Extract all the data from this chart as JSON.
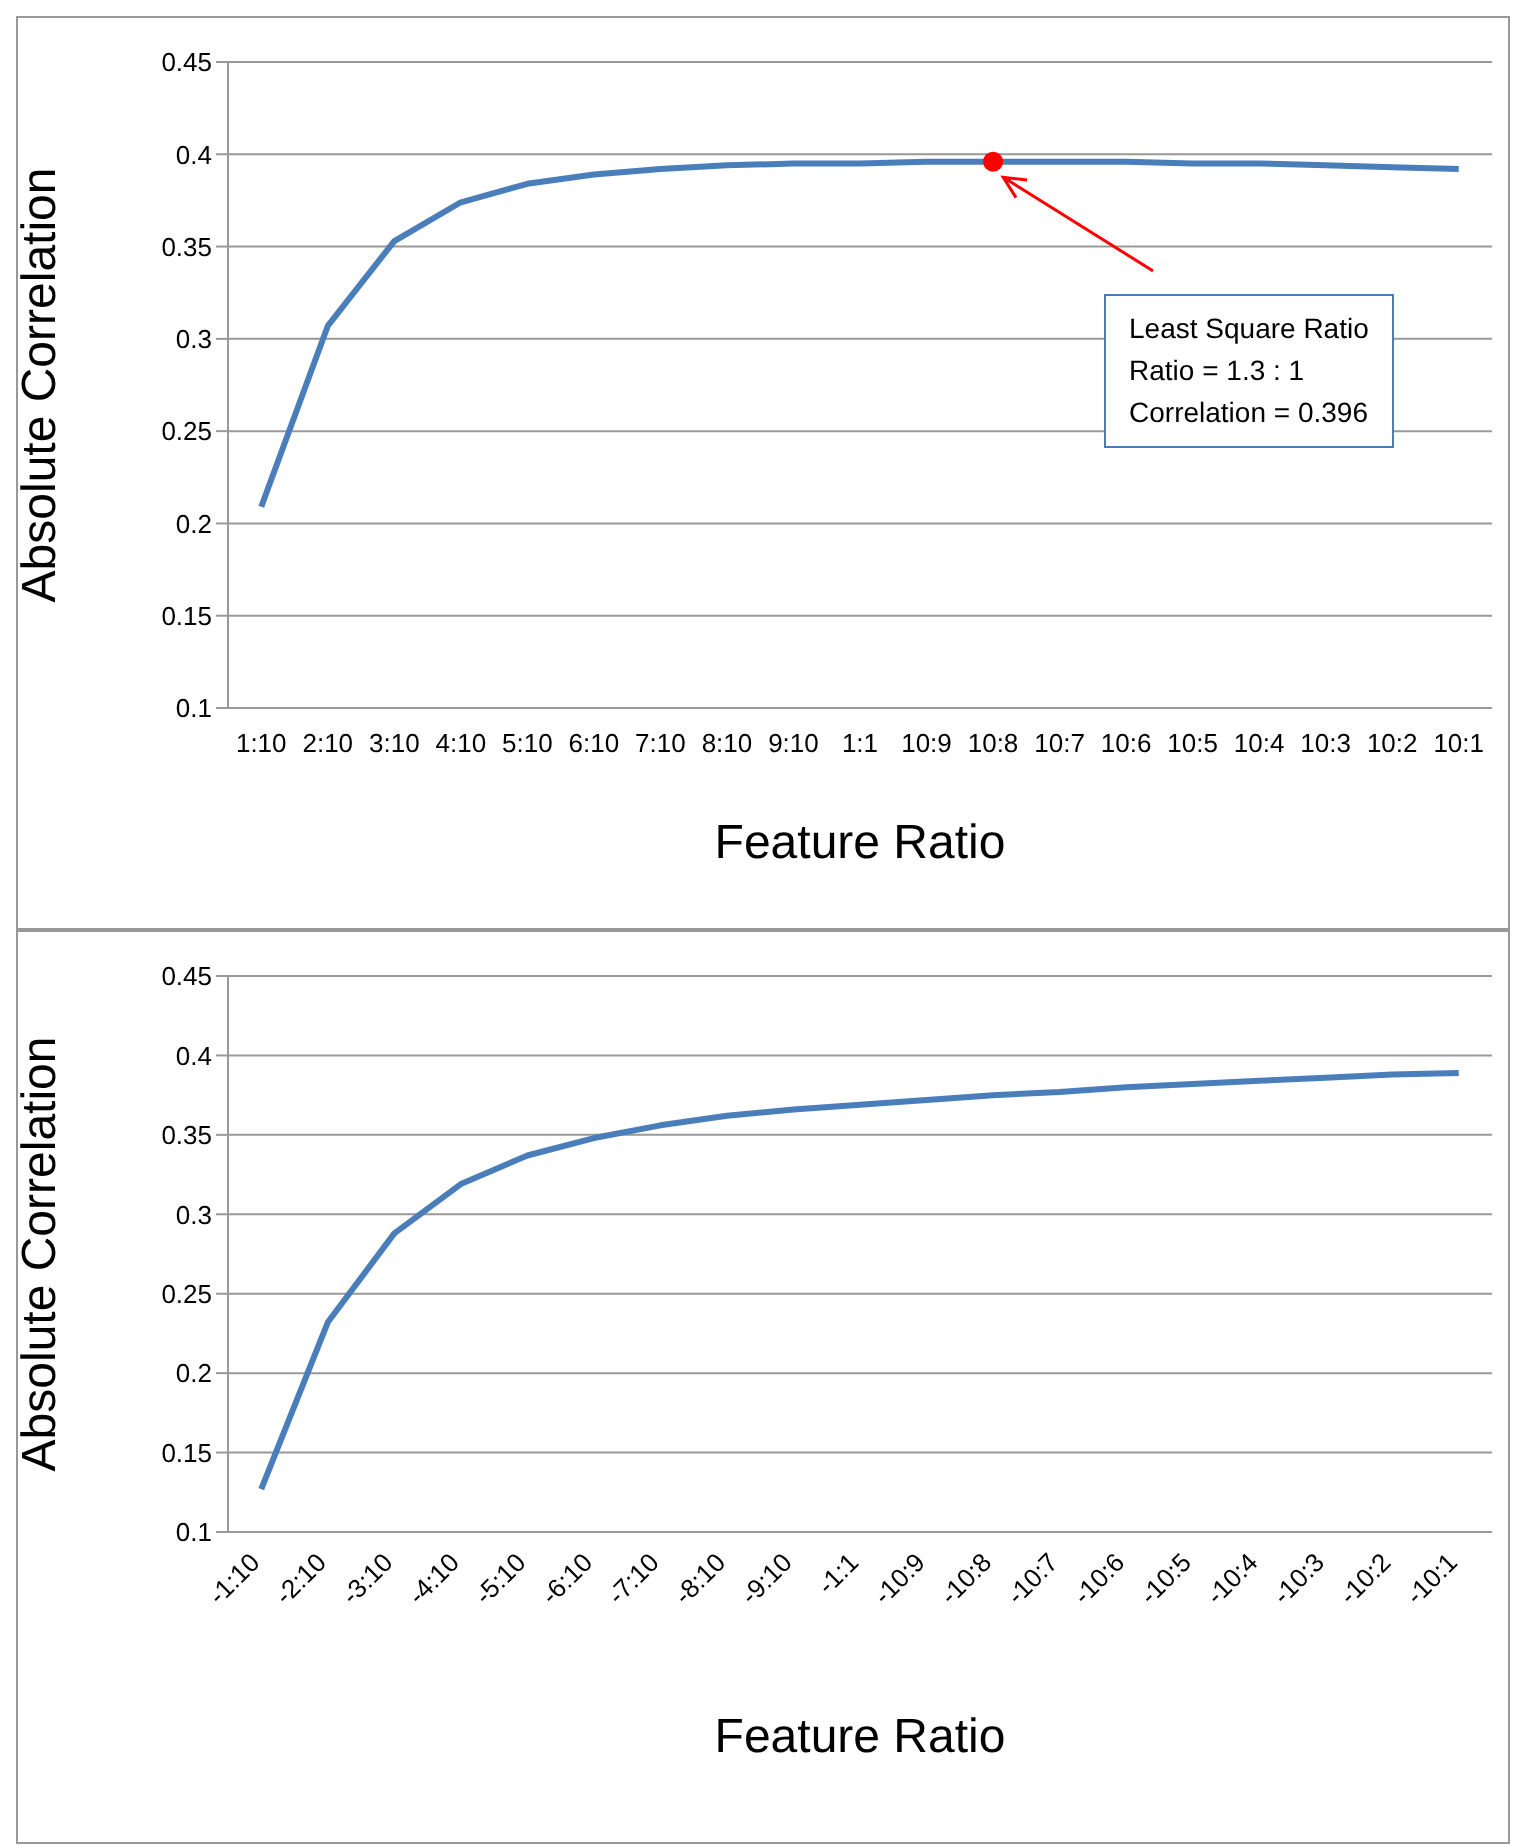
{
  "chart_data": [
    {
      "type": "line",
      "xlabel": "Feature Ratio",
      "ylabel": "Absolute Correlation",
      "categories": [
        "1:10",
        "2:10",
        "3:10",
        "4:10",
        "5:10",
        "6:10",
        "7:10",
        "8:10",
        "9:10",
        "1:1",
        "10:9",
        "10:8",
        "10:7",
        "10:6",
        "10:5",
        "10:4",
        "10:3",
        "10:2",
        "10:1"
      ],
      "series": [
        {
          "color": "#4a7ebb",
          "marker": "none",
          "values": [
            0.209,
            0.307,
            0.353,
            0.374,
            0.384,
            0.389,
            0.392,
            0.394,
            0.395,
            0.395,
            0.396,
            0.396,
            0.396,
            0.396,
            0.395,
            0.395,
            0.394,
            0.393,
            0.392
          ]
        },
        {
          "type": "scatter",
          "color": "#ff0000",
          "marker": "circle",
          "x": [
            "10:8"
          ],
          "values": [
            0.396
          ]
        }
      ],
      "ylim": [
        0.1,
        0.45
      ],
      "yticks": [
        0.1,
        0.15,
        0.2,
        0.25,
        0.3,
        0.35,
        0.4,
        0.45
      ],
      "grid": "y",
      "annotations": [
        "Least Square Ratio\nRatio = 1.3 : 1\nCorrelation = 0.396"
      ]
    },
    {
      "type": "line",
      "xlabel": "Feature Ratio",
      "ylabel": "Absolute Correlation",
      "categories": [
        "-1:10",
        "-2:10",
        "-3:10",
        "-4:10",
        "-5:10",
        "-6:10",
        "-7:10",
        "-8:10",
        "-9:10",
        "-1:1",
        "-10:9",
        "-10:8",
        "-10:7",
        "-10:6",
        "-10:5",
        "-10:4",
        "-10:3",
        "-10:2",
        "-10:1"
      ],
      "series": [
        {
          "color": "#4a7ebb",
          "values": [
            0.127,
            0.232,
            0.288,
            0.319,
            0.337,
            0.348,
            0.356,
            0.362,
            0.366,
            0.369,
            0.372,
            0.375,
            0.377,
            0.38,
            0.382,
            0.384,
            0.386,
            0.388,
            0.389
          ]
        }
      ],
      "ylim": [
        0.1,
        0.45
      ],
      "yticks": [
        0.1,
        0.15,
        0.2,
        0.25,
        0.3,
        0.35,
        0.4,
        0.45
      ],
      "grid": "y",
      "marker": "none"
    }
  ]
}
